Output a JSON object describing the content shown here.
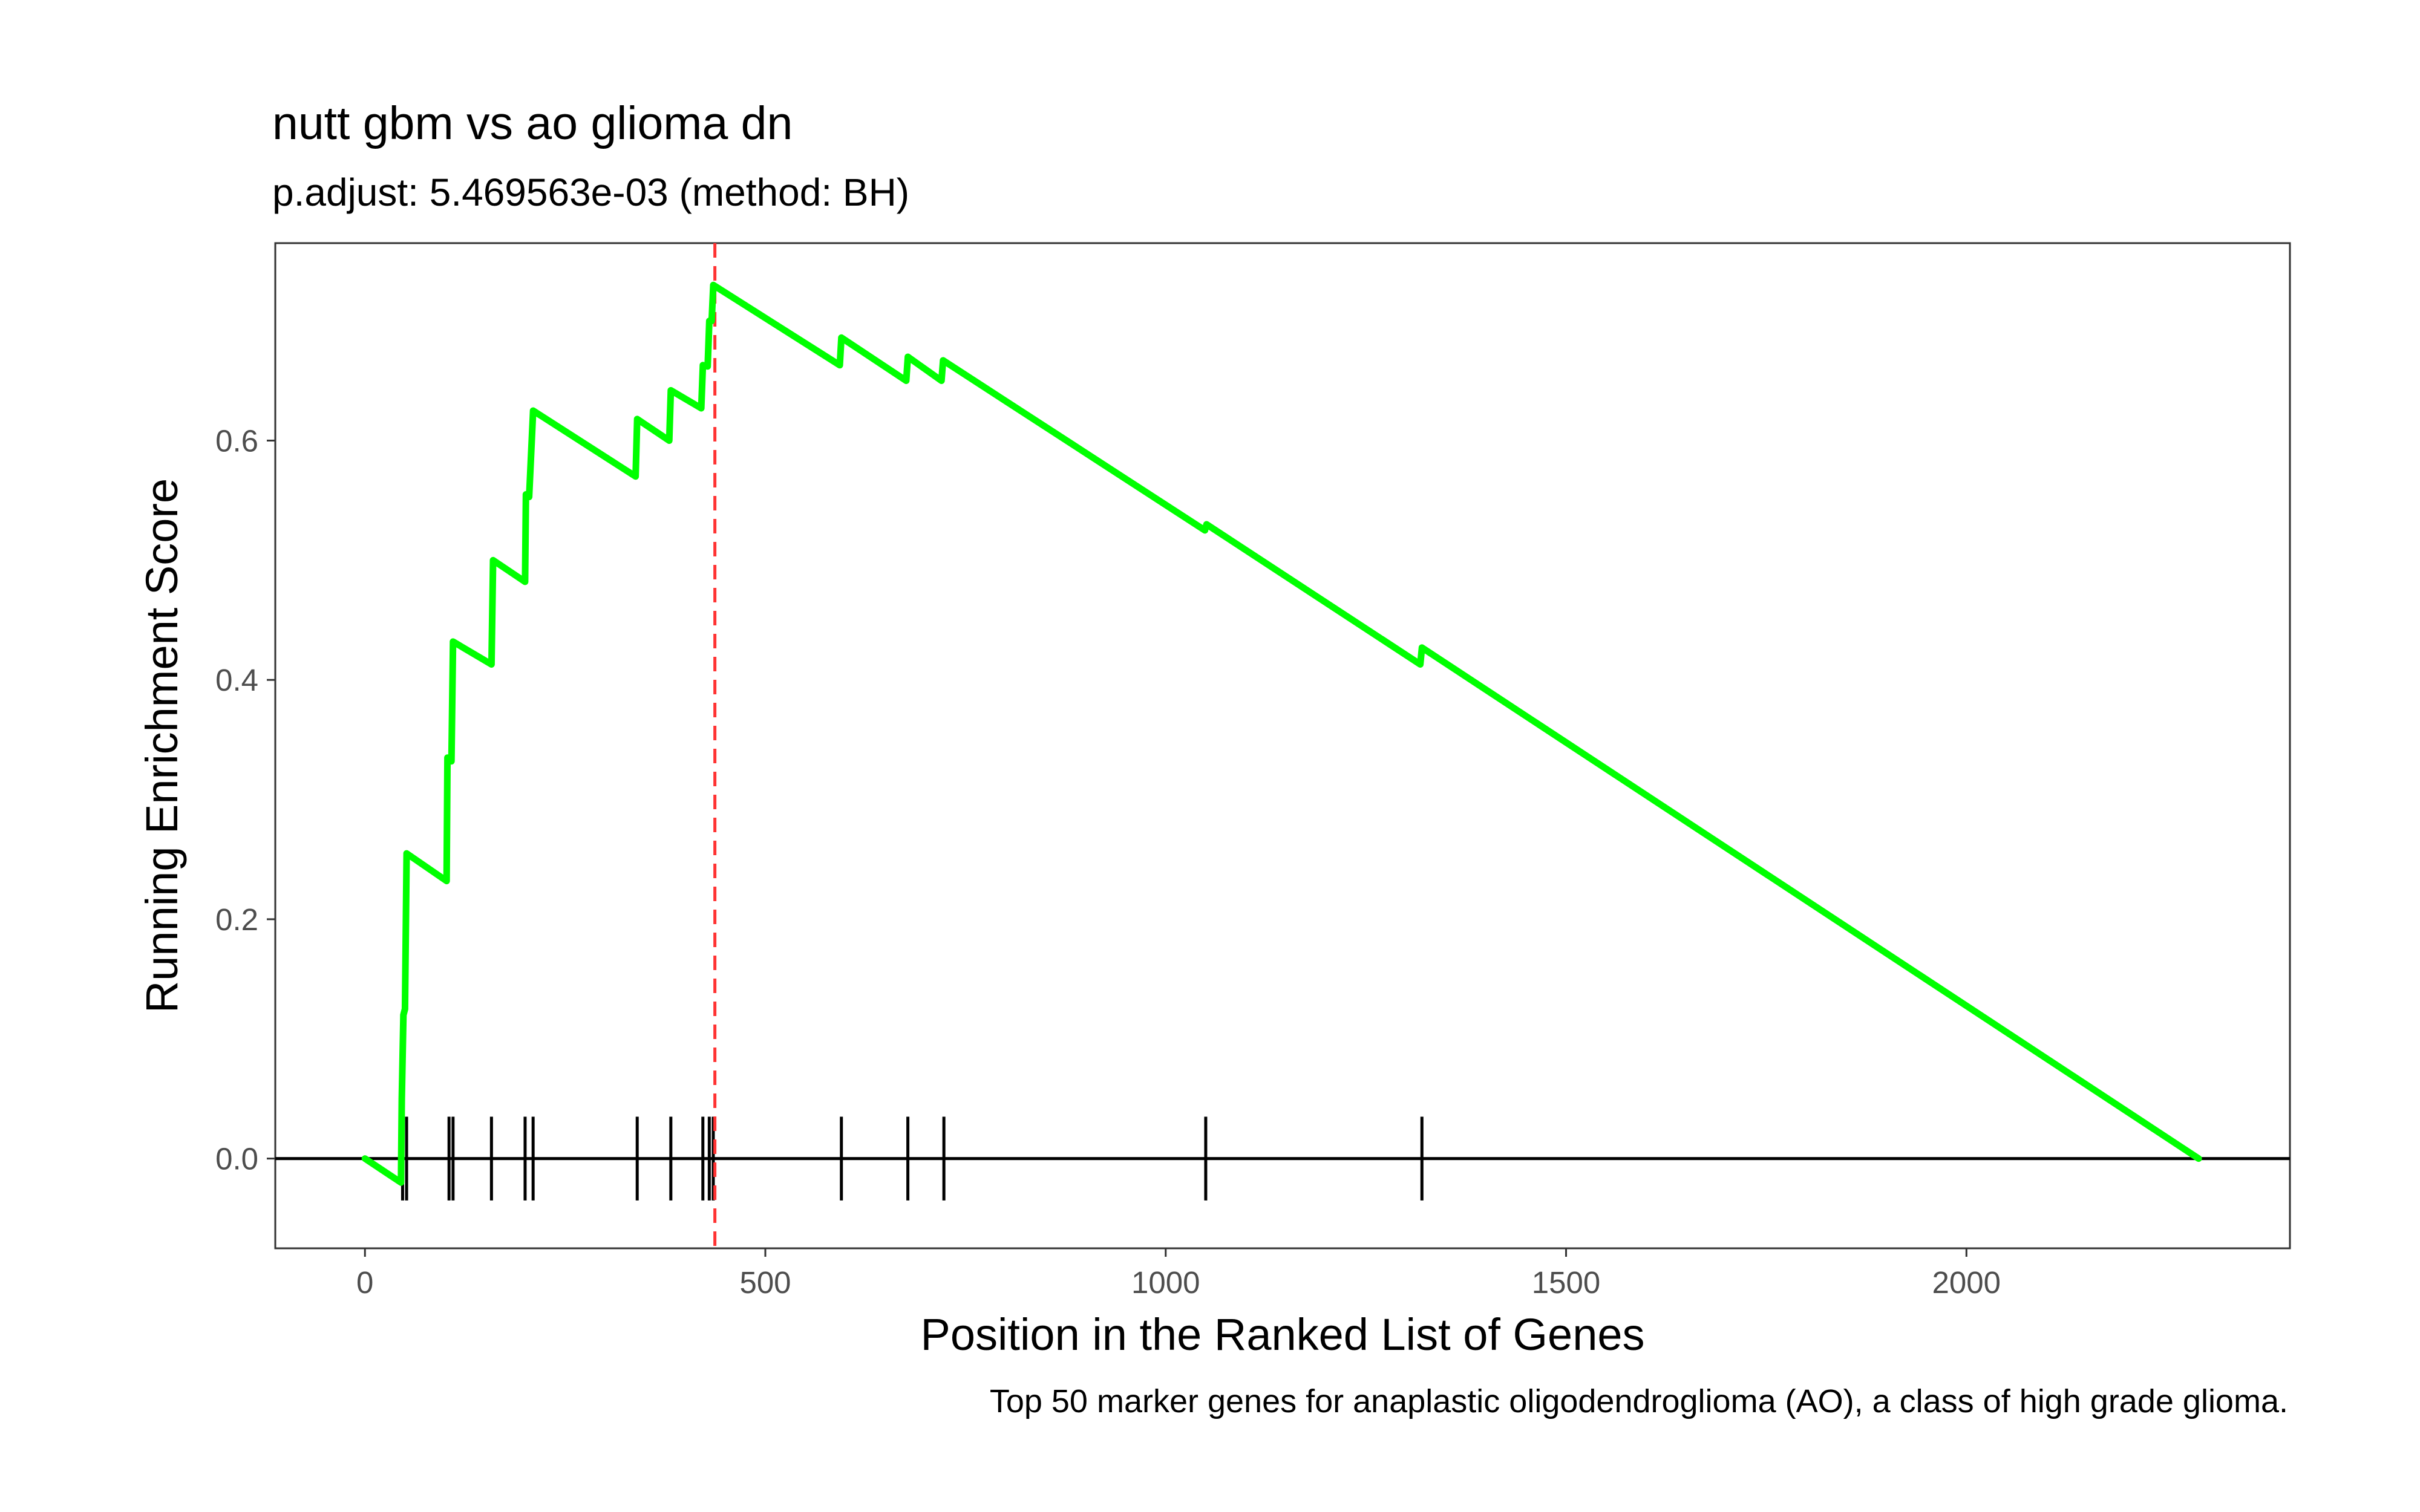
{
  "chart_data": {
    "type": "line",
    "title": "nutt gbm vs ao glioma dn",
    "subtitle": "p.adjust: 5.469563e-03 (method: BH)",
    "xlabel": "Position in the Ranked List of Genes",
    "ylabel": "Running Enrichment Score",
    "caption": "Top 50 marker genes for anaplastic oligodendroglioma (AO), a class of high grade glioma.",
    "xlim": [
      -112,
      2404
    ],
    "ylim": [
      -0.075,
      0.765
    ],
    "x_ticks": [
      0,
      500,
      1000,
      1500,
      2000
    ],
    "x_tick_labels": [
      "0",
      "500",
      "1000",
      "1500",
      "2000"
    ],
    "y_ticks": [
      0.0,
      0.2,
      0.4,
      0.6
    ],
    "y_tick_labels": [
      "0.0",
      "0.2",
      "0.4",
      "0.6"
    ],
    "grid": false,
    "legend": "none",
    "series": [
      {
        "color": "#00ff00",
        "x": [
          0,
          45,
          46,
          48,
          50,
          52,
          102,
          103,
          108,
          110,
          158,
          160,
          200,
          201,
          205,
          210,
          338,
          340,
          380,
          382,
          420,
          422,
          428,
          430,
          433,
          435,
          593,
          595,
          676,
          678,
          720,
          722,
          1049,
          1051,
          1318,
          1320,
          2290
        ],
        "y": [
          0.0,
          -0.02,
          0.05,
          0.12,
          0.125,
          0.255,
          0.232,
          0.335,
          0.332,
          0.432,
          0.413,
          0.5,
          0.482,
          0.555,
          0.553,
          0.625,
          0.57,
          0.618,
          0.6,
          0.642,
          0.627,
          0.663,
          0.662,
          0.7,
          0.7,
          0.73,
          0.663,
          0.686,
          0.65,
          0.67,
          0.65,
          0.667,
          0.525,
          0.53,
          0.413,
          0.427,
          0.0
        ]
      }
    ],
    "gene_hits": [
      47,
      52,
      105,
      110,
      158,
      200,
      210,
      340,
      382,
      422,
      430,
      435,
      595,
      678,
      723,
      1050,
      1320
    ],
    "hit_color": "#000000",
    "peak_marker": {
      "x": 437,
      "color": "#ff3333"
    },
    "zero_line": 0.0
  }
}
